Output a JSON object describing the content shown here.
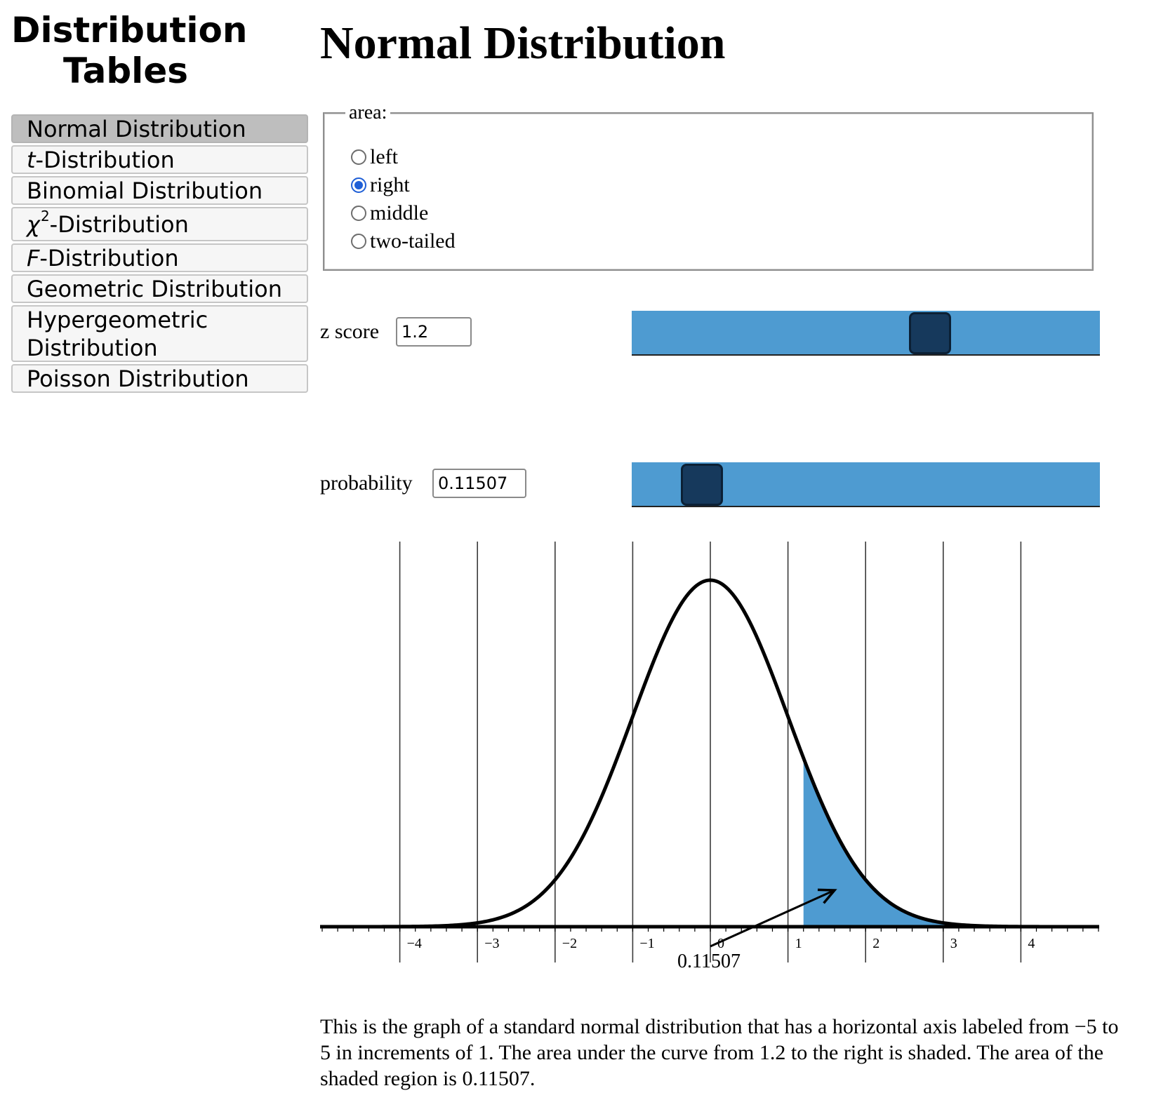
{
  "app": {
    "title_line1": "Distribution",
    "title_line2": "Tables"
  },
  "nav": {
    "active": "Normal Distribution",
    "items": [
      {
        "label": "Normal Distribution"
      },
      {
        "italic_prefix": "t",
        "label": "-Distribution"
      },
      {
        "label": "Binomial Distribution"
      },
      {
        "italic_prefix": "χ",
        "superscript": "2",
        "label": "-Distribution"
      },
      {
        "italic_prefix": "F",
        "label": "-Distribution"
      },
      {
        "label": "Geometric Distribution"
      },
      {
        "label_line1": "Hypergeometric",
        "label_line2": "Distribution"
      },
      {
        "label": "Poisson Distribution"
      }
    ]
  },
  "page": {
    "title": "Normal Distribution"
  },
  "area": {
    "legend": "area:",
    "selected": "right",
    "options": [
      {
        "label": "left",
        "checked": false
      },
      {
        "label": "right",
        "checked": true
      },
      {
        "label": "middle",
        "checked": false
      },
      {
        "label": "two-tailed",
        "checked": false
      }
    ]
  },
  "z": {
    "label": "z score",
    "value": "1.2",
    "slider_min": -4,
    "slider_max": 4
  },
  "probability": {
    "label": "probability",
    "value": "0.11507",
    "slider_min": 0,
    "slider_max": 1
  },
  "chart_data": {
    "type": "area",
    "xlim": [
      -5,
      5
    ],
    "tick_labels": [
      "−4",
      "−3",
      "−2",
      "−1",
      "0",
      "1",
      "2",
      "3",
      "4"
    ],
    "tick_values": [
      -4,
      -3,
      -2,
      -1,
      0,
      1,
      2,
      3,
      4
    ],
    "shade_from": 1.2,
    "shade_to": 5,
    "shaded_area_label": "0.11507",
    "grid": true,
    "colors": {
      "shade": "#4e9bd1",
      "curve": "#000000",
      "grid": "#3a3a3a"
    }
  },
  "caption": "This is the graph of a standard normal distribution that has a horizontal axis labeled from −5 to 5 in increments of 1. The area under the curve from 1.2 to the right is shaded. The area of the shaded region is 0.11507."
}
